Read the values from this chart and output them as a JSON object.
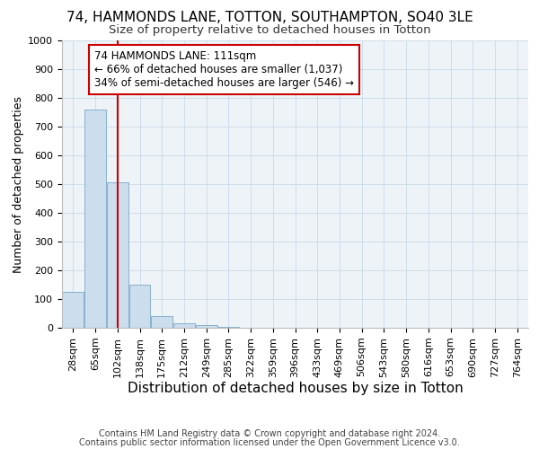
{
  "title": "74, HAMMONDS LANE, TOTTON, SOUTHAMPTON, SO40 3LE",
  "subtitle": "Size of property relative to detached houses in Totton",
  "xlabel": "Distribution of detached houses by size in Totton",
  "ylabel": "Number of detached properties",
  "footer_line1": "Contains HM Land Registry data © Crown copyright and database right 2024.",
  "footer_line2": "Contains public sector information licensed under the Open Government Licence v3.0.",
  "bin_labels": [
    "28sqm",
    "65sqm",
    "102sqm",
    "138sqm",
    "175sqm",
    "212sqm",
    "249sqm",
    "285sqm",
    "322sqm",
    "359sqm",
    "396sqm",
    "433sqm",
    "469sqm",
    "506sqm",
    "543sqm",
    "580sqm",
    "616sqm",
    "653sqm",
    "690sqm",
    "727sqm",
    "764sqm"
  ],
  "bar_heights": [
    125,
    760,
    505,
    150,
    40,
    15,
    10,
    2,
    0,
    0,
    0,
    0,
    0,
    0,
    0,
    0,
    0,
    0,
    0,
    0,
    0
  ],
  "bar_color": "#ccdded",
  "bar_edge_color": "#7aaac8",
  "grid_color": "#c8dae8",
  "background_color": "#eef3f8",
  "annotation_text": "74 HAMMONDS LANE: 111sqm\n← 66% of detached houses are smaller (1,037)\n34% of semi-detached houses are larger (546) →",
  "annotation_box_facecolor": "#ffffff",
  "annotation_box_edgecolor": "#cc0000",
  "red_line_color": "#cc0000",
  "red_line_x": 2.0,
  "ylim": [
    0,
    1000
  ],
  "yticks": [
    0,
    100,
    200,
    300,
    400,
    500,
    600,
    700,
    800,
    900,
    1000
  ],
  "title_fontsize": 11,
  "subtitle_fontsize": 9.5,
  "annotation_fontsize": 8.5,
  "xlabel_fontsize": 11,
  "ylabel_fontsize": 9,
  "tick_fontsize": 8
}
